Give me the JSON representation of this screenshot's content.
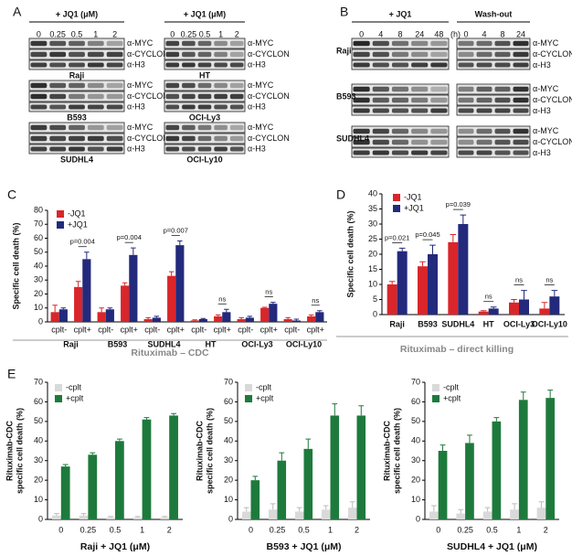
{
  "panel_A": {
    "label": "A",
    "header": "+ JQ1 (μM)",
    "doses": [
      "0",
      "0.25",
      "0.5",
      "1",
      "2"
    ],
    "antibodies": [
      "α-MYC",
      "α-CYCLON",
      "α-H3"
    ],
    "cell_lines": [
      "Raji",
      "HT",
      "B593",
      "OCI-Ly3",
      "SUDHL4",
      "OCI-Ly10"
    ]
  },
  "panel_B": {
    "label": "B",
    "headers": [
      "+ JQ1",
      "Wash-out"
    ],
    "unit": "(h)",
    "times": [
      "0",
      "4",
      "8",
      "24",
      "48"
    ],
    "cell_lines": [
      "Raji",
      "B593",
      "SUDHL4"
    ]
  },
  "chart_data": [
    {
      "type": "bar",
      "panel": "C",
      "ylabel": "Specific cell death (%)",
      "xlabel": "Rituximab – CDC",
      "categories": [
        "cplt-",
        "cplt+",
        "cplt-",
        "cplt+",
        "cplt-",
        "cplt+",
        "cplt-",
        "cplt+",
        "cplt-",
        "cplt+",
        "cplt-",
        "cplt+"
      ],
      "groups": [
        "Raji",
        "B593",
        "SUDHL4",
        "HT",
        "OCI-Ly3",
        "OCI-Ly10"
      ],
      "series": [
        {
          "name": "-JQ1",
          "color": "#d9262a",
          "values": [
            7,
            25,
            7,
            26,
            2,
            33,
            1,
            4,
            2,
            10,
            2,
            4
          ],
          "errors": [
            5,
            4,
            3,
            2,
            1,
            3,
            0.5,
            1,
            1,
            0.5,
            1,
            1
          ]
        },
        {
          "name": "+JQ1",
          "color": "#232a7c",
          "values": [
            9,
            45,
            9,
            48,
            3,
            55,
            2,
            7,
            3,
            13,
            1,
            7
          ],
          "errors": [
            1,
            5,
            1,
            5,
            1,
            3,
            0.5,
            2,
            1,
            1,
            1,
            1
          ]
        }
      ],
      "annotations": [
        "p=0.004",
        "p=0.004",
        "p=0.007",
        "ns",
        "ns",
        "ns"
      ],
      "ylim": [
        0,
        80
      ],
      "yticks": [
        0,
        10,
        20,
        30,
        40,
        50,
        60,
        70,
        80
      ]
    },
    {
      "type": "bar",
      "panel": "D",
      "ylabel": "Specific cell death (%)",
      "xlabel": "Rituximab – direct killing",
      "categories": [
        "Raji",
        "B593",
        "SUDHL4",
        "HT",
        "OCI-Ly3",
        "OCI-Ly10"
      ],
      "series": [
        {
          "name": "-JQ1",
          "color": "#d9262a",
          "values": [
            10,
            16,
            24,
            1,
            4,
            2
          ],
          "errors": [
            1,
            1.5,
            2.5,
            0.3,
            1,
            2
          ]
        },
        {
          "name": "+JQ1",
          "color": "#232a7c",
          "values": [
            21,
            20,
            30,
            2,
            5,
            6
          ],
          "errors": [
            1,
            3,
            3,
            0.5,
            3,
            2
          ]
        }
      ],
      "annotations": [
        "p=0.021",
        "p=0.045",
        "p=0.039",
        "ns",
        "ns",
        "ns"
      ],
      "ylim": [
        0,
        40
      ],
      "yticks": [
        0,
        5,
        10,
        15,
        20,
        25,
        30,
        35,
        40
      ]
    },
    {
      "type": "bar",
      "panel": "E",
      "ylabel": [
        "Rituximab-CDC",
        "specific cell death (%)"
      ],
      "xlabel": "Raji + JQ1 (μM)",
      "categories": [
        "0",
        "0.25",
        "0.5",
        "1",
        "2"
      ],
      "series": [
        {
          "name": "-cplt",
          "color": "#d9d9d9",
          "values": [
            2,
            2,
            1,
            1,
            1
          ],
          "errors": [
            1,
            1,
            0.5,
            0.5,
            0.5
          ]
        },
        {
          "name": "+cplt",
          "color": "#1e7a3c",
          "values": [
            27,
            33,
            40,
            51,
            53
          ],
          "errors": [
            1,
            1,
            1,
            1,
            1
          ]
        }
      ],
      "ylim": [
        0,
        70
      ],
      "yticks": [
        0,
        10,
        20,
        30,
        40,
        50,
        60,
        70
      ]
    },
    {
      "type": "bar",
      "ylabel": [
        "Rituximab-CDC",
        "specific cell death (%)"
      ],
      "xlabel": "B593 + JQ1 (μM)",
      "categories": [
        "0",
        "0.25",
        "0.5",
        "1",
        "2"
      ],
      "series": [
        {
          "name": "-cplt",
          "color": "#d9d9d9",
          "values": [
            4,
            5,
            4,
            5,
            6
          ],
          "errors": [
            2,
            3,
            2,
            2,
            3
          ]
        },
        {
          "name": "+cplt",
          "color": "#1e7a3c",
          "values": [
            20,
            30,
            36,
            53,
            53
          ],
          "errors": [
            2,
            4,
            5,
            6,
            5
          ]
        }
      ],
      "ylim": [
        0,
        70
      ],
      "yticks": [
        0,
        10,
        20,
        30,
        40,
        50,
        60,
        70
      ]
    },
    {
      "type": "bar",
      "ylabel": [
        "Rituximab-CDC",
        "specific cell death (%)"
      ],
      "xlabel": "SUDHL4 + JQ1 (μM)",
      "categories": [
        "0",
        "0.25",
        "0.5",
        "1",
        "2"
      ],
      "series": [
        {
          "name": "-cplt",
          "color": "#d9d9d9",
          "values": [
            4,
            3,
            4,
            5,
            6
          ],
          "errors": [
            3,
            2,
            2,
            3,
            3
          ]
        },
        {
          "name": "+cplt",
          "color": "#1e7a3c",
          "values": [
            35,
            39,
            50,
            61,
            62
          ],
          "errors": [
            3,
            4,
            2,
            4,
            4
          ]
        }
      ],
      "ylim": [
        0,
        70
      ],
      "yticks": [
        0,
        10,
        20,
        30,
        40,
        50,
        60,
        70
      ]
    }
  ]
}
